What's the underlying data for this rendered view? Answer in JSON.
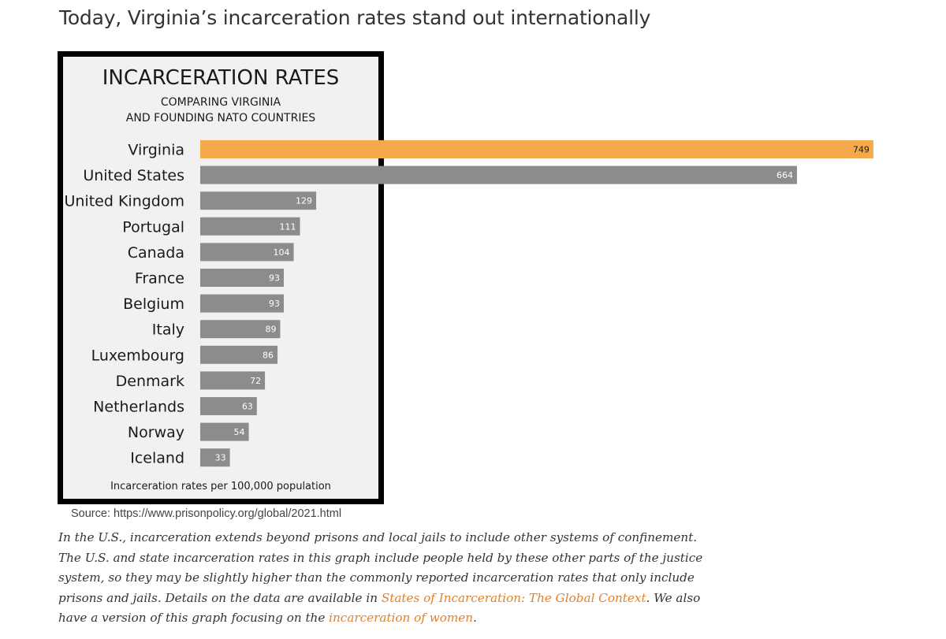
{
  "heading": "Today, Virginia’s incarceration rates stand out internationally",
  "chart_data": {
    "type": "bar",
    "orientation": "horizontal",
    "title": "INCARCERATION RATES",
    "subtitle_lines": [
      "COMPARING VIRGINIA",
      "AND FOUNDING NATO COUNTRIES"
    ],
    "categories": [
      "Virginia",
      "United States",
      "United Kingdom",
      "Portugal",
      "Canada",
      "France",
      "Belgium",
      "Italy",
      "Luxembourg",
      "Denmark",
      "Netherlands",
      "Norway",
      "Iceland"
    ],
    "values": [
      749,
      664,
      129,
      111,
      104,
      93,
      93,
      89,
      86,
      72,
      63,
      54,
      33
    ],
    "highlight_category": "Virginia",
    "colors": {
      "highlight": "#f4aa4a",
      "default": "#8c8c8c",
      "highlight_label": "#1a1a1a",
      "default_label": "#ffffff"
    },
    "xlabel": "Incarceration rates per 100,000 population",
    "xlim": [
      0,
      750
    ],
    "grid": false,
    "legend": "none"
  },
  "source": "Source: https://www.prisonpolicy.org/global/2021.html",
  "caption": {
    "part1": "In the U.S., incarceration extends beyond prisons and local jails to include other systems of confinement. The U.S. and state incarceration rates in this graph include people held by these other parts of the justice system, so they may be slightly higher than the commonly reported incarceration rates that only include prisons and jails. Details on the data are available in ",
    "link1": "States of Incarceration: The Global Context",
    "part2": ". We also have a version of this graph focusing on the ",
    "link2": "incarceration of women",
    "part3": "."
  },
  "link_color": "#e0812b"
}
